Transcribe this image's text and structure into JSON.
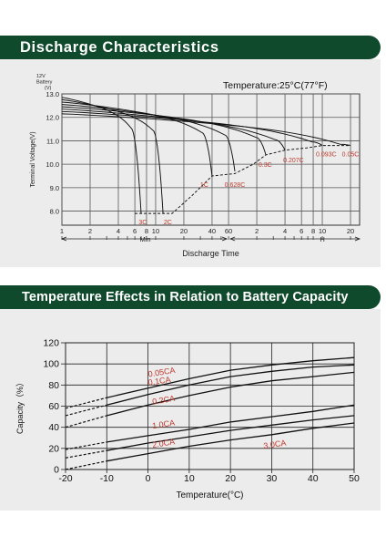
{
  "section1": {
    "title": "Discharge Characteristics"
  },
  "section2": {
    "title": "Temperature Effects in Relation to Battery Capacity"
  },
  "colors": {
    "banner": "#0f4a2c",
    "panel": "#ececec",
    "curve": "#111111",
    "annotation": "#c0392b"
  },
  "chart_data": [
    {
      "type": "line",
      "title": "Discharge Characteristics",
      "subtitle": "Temperature:25°C(77°F)",
      "xlabel": "Discharge Time",
      "ylabel": "Terminal Voltage(V)",
      "ylabel_note": [
        "12V",
        "Battery",
        "(V)"
      ],
      "x_scale": "log",
      "x_units": [
        "Min",
        "H"
      ],
      "x_ticks_min": [
        "1",
        "2",
        "4",
        "6",
        "8",
        "10",
        "20",
        "40",
        "60"
      ],
      "x_ticks_h": [
        "2",
        "4",
        "6",
        "8",
        "10",
        "20"
      ],
      "y_ticks": [
        "8.0",
        "9.0",
        "10.0",
        "11.0",
        "12.0",
        "13.0"
      ],
      "ylim": [
        7.4,
        13.0
      ],
      "xlim_minutes": [
        1,
        1500
      ],
      "grid": true,
      "series": [
        {
          "name": "3C",
          "end_minutes": 7,
          "end_voltage": 7.9
        },
        {
          "name": "2C",
          "end_minutes": 12,
          "end_voltage": 7.9
        },
        {
          "name": "1C",
          "end_minutes": 40,
          "end_voltage": 9.5
        },
        {
          "name": "0.628C",
          "end_minutes": 70,
          "end_voltage": 9.7
        },
        {
          "name": "0.3C",
          "end_minutes": 150,
          "end_voltage": 10.4
        },
        {
          "name": "0.207C",
          "end_minutes": 240,
          "end_voltage": 10.6
        },
        {
          "name": "0.093C",
          "end_minutes": 600,
          "end_voltage": 10.8
        },
        {
          "name": "0.05C",
          "end_minutes": 1200,
          "end_voltage": 10.8
        }
      ],
      "final_voltage_line": [
        [
          6,
          7.9
        ],
        [
          15,
          7.9
        ],
        [
          25,
          8.7
        ],
        [
          40,
          9.5
        ],
        [
          70,
          9.6
        ],
        [
          110,
          10.0
        ],
        [
          150,
          10.4
        ],
        [
          240,
          10.6
        ],
        [
          420,
          10.7
        ],
        [
          600,
          10.8
        ],
        [
          1200,
          10.8
        ]
      ]
    },
    {
      "type": "line",
      "title": "Temperature Effects in Relation to Battery Capacity",
      "xlabel": "Temperature(°C)",
      "ylabel": "Capacity（%）",
      "x_ticks": [
        "-20",
        "-10",
        "0",
        "10",
        "20",
        "30",
        "40",
        "50"
      ],
      "y_ticks": [
        "0",
        "20",
        "40",
        "60",
        "80",
        "100",
        "120"
      ],
      "xlim": [
        -20,
        50
      ],
      "ylim": [
        0,
        120
      ],
      "grid": true,
      "series": [
        {
          "name": "0.05CA",
          "x": [
            -20,
            -10,
            0,
            10,
            20,
            30,
            40,
            50
          ],
          "y": [
            58,
            68,
            77,
            86,
            94,
            99,
            103,
            106
          ],
          "label_at": [
            0,
            91
          ]
        },
        {
          "name": "0.1CA",
          "x": [
            -20,
            -10,
            0,
            10,
            20,
            30,
            40,
            50
          ],
          "y": [
            51,
            61,
            71,
            80,
            88,
            93,
            97,
            99
          ],
          "label_at": [
            0,
            83
          ]
        },
        {
          "name": "0.2CA",
          "x": [
            -20,
            -10,
            0,
            10,
            20,
            30,
            40,
            50
          ],
          "y": [
            40,
            51,
            61,
            70,
            78,
            84,
            88,
            92
          ],
          "label_at": [
            1,
            65
          ]
        },
        {
          "name": "1.0CA",
          "x": [
            -20,
            -10,
            0,
            10,
            20,
            30,
            40,
            50
          ],
          "y": [
            19,
            26,
            32,
            38,
            45,
            50,
            55,
            61
          ],
          "label_at": [
            1,
            42
          ]
        },
        {
          "name": "2.0CA",
          "x": [
            -20,
            -10,
            0,
            10,
            20,
            30,
            40,
            50
          ],
          "y": [
            11,
            18,
            25,
            31,
            37,
            42,
            47,
            51
          ],
          "label_at": [
            1,
            24
          ]
        },
        {
          "name": "3.0CA",
          "x": [
            -20,
            -10,
            0,
            10,
            20,
            30,
            40,
            50
          ],
          "y": [
            0,
            8,
            15,
            22,
            28,
            33,
            39,
            44
          ],
          "label_at": [
            28,
            23
          ]
        }
      ]
    }
  ]
}
